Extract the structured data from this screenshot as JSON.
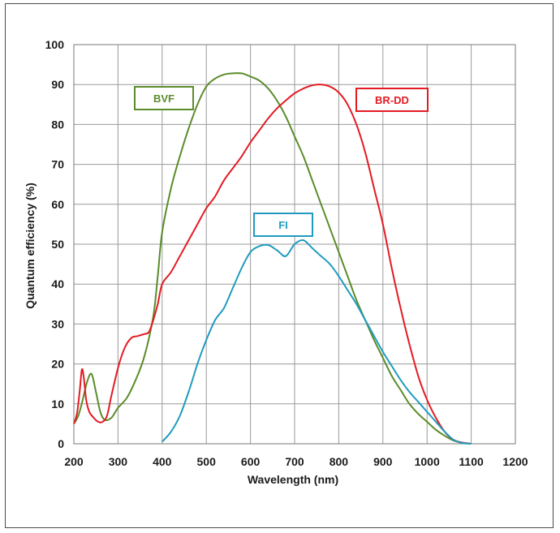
{
  "chart_data": {
    "type": "line",
    "xlabel": "Wavelength (nm)",
    "ylabel": "Quantum efficiency (%)",
    "xlim": [
      200,
      1200
    ],
    "ylim": [
      0,
      100
    ],
    "x_ticks": [
      200,
      300,
      400,
      500,
      600,
      700,
      800,
      900,
      1000,
      1100,
      1200
    ],
    "y_ticks": [
      0,
      10,
      20,
      30,
      40,
      50,
      60,
      70,
      80,
      90,
      100
    ],
    "grid": true,
    "series": [
      {
        "name": "BVF",
        "color": "#5b8c2a",
        "points": [
          [
            200,
            5
          ],
          [
            210,
            7
          ],
          [
            220,
            11
          ],
          [
            230,
            15.5
          ],
          [
            240,
            17.5
          ],
          [
            250,
            13
          ],
          [
            260,
            8
          ],
          [
            270,
            6
          ],
          [
            285,
            6.5
          ],
          [
            300,
            9
          ],
          [
            320,
            11.5
          ],
          [
            340,
            16
          ],
          [
            360,
            22
          ],
          [
            380,
            32
          ],
          [
            390,
            42
          ],
          [
            400,
            53
          ],
          [
            420,
            64
          ],
          [
            440,
            72
          ],
          [
            460,
            79
          ],
          [
            480,
            85
          ],
          [
            500,
            89.5
          ],
          [
            520,
            91.5
          ],
          [
            540,
            92.5
          ],
          [
            560,
            92.8
          ],
          [
            580,
            92.8
          ],
          [
            600,
            92
          ],
          [
            620,
            91
          ],
          [
            640,
            89
          ],
          [
            660,
            86
          ],
          [
            680,
            82
          ],
          [
            700,
            77
          ],
          [
            720,
            72
          ],
          [
            740,
            66
          ],
          [
            760,
            60
          ],
          [
            780,
            54
          ],
          [
            800,
            48
          ],
          [
            820,
            42
          ],
          [
            840,
            36
          ],
          [
            860,
            31
          ],
          [
            880,
            26
          ],
          [
            900,
            21.5
          ],
          [
            920,
            17
          ],
          [
            940,
            13.5
          ],
          [
            960,
            10
          ],
          [
            980,
            7.5
          ],
          [
            1000,
            5.5
          ],
          [
            1020,
            3.5
          ],
          [
            1040,
            2
          ],
          [
            1060,
            0.8
          ],
          [
            1080,
            0.2
          ],
          [
            1100,
            0
          ]
        ]
      },
      {
        "name": "BR-DD",
        "color": "#e31b23",
        "points": [
          [
            200,
            5
          ],
          [
            207,
            7.5
          ],
          [
            213,
            13
          ],
          [
            218,
            18.5
          ],
          [
            222,
            17
          ],
          [
            228,
            11
          ],
          [
            235,
            8
          ],
          [
            245,
            6.5
          ],
          [
            255,
            5.5
          ],
          [
            265,
            5.5
          ],
          [
            275,
            7
          ],
          [
            285,
            12
          ],
          [
            300,
            19
          ],
          [
            315,
            24
          ],
          [
            330,
            26.5
          ],
          [
            345,
            27
          ],
          [
            360,
            27.5
          ],
          [
            370,
            28
          ],
          [
            380,
            31
          ],
          [
            390,
            35
          ],
          [
            400,
            40
          ],
          [
            420,
            43
          ],
          [
            440,
            47
          ],
          [
            460,
            51
          ],
          [
            480,
            55
          ],
          [
            500,
            59
          ],
          [
            520,
            62
          ],
          [
            540,
            66
          ],
          [
            560,
            69
          ],
          [
            580,
            72
          ],
          [
            600,
            75.5
          ],
          [
            620,
            78.5
          ],
          [
            640,
            81.5
          ],
          [
            660,
            84
          ],
          [
            680,
            86
          ],
          [
            700,
            87.8
          ],
          [
            720,
            89
          ],
          [
            740,
            89.8
          ],
          [
            760,
            90
          ],
          [
            780,
            89.5
          ],
          [
            800,
            88
          ],
          [
            820,
            85
          ],
          [
            840,
            80
          ],
          [
            860,
            73
          ],
          [
            880,
            64
          ],
          [
            900,
            55
          ],
          [
            920,
            44
          ],
          [
            940,
            34
          ],
          [
            960,
            25
          ],
          [
            980,
            17
          ],
          [
            1000,
            11
          ],
          [
            1020,
            6.5
          ],
          [
            1040,
            3
          ],
          [
            1060,
            1
          ],
          [
            1080,
            0.3
          ],
          [
            1100,
            0
          ]
        ]
      },
      {
        "name": "FI",
        "color": "#1f9bbf",
        "points": [
          [
            400,
            0.5
          ],
          [
            420,
            3
          ],
          [
            440,
            7
          ],
          [
            460,
            13
          ],
          [
            480,
            20
          ],
          [
            500,
            26
          ],
          [
            520,
            31
          ],
          [
            540,
            34
          ],
          [
            560,
            39
          ],
          [
            580,
            44
          ],
          [
            600,
            48
          ],
          [
            620,
            49.5
          ],
          [
            640,
            49.8
          ],
          [
            660,
            48.5
          ],
          [
            680,
            47
          ],
          [
            700,
            50
          ],
          [
            720,
            51
          ],
          [
            740,
            49
          ],
          [
            760,
            47
          ],
          [
            780,
            45
          ],
          [
            800,
            42
          ],
          [
            820,
            38.5
          ],
          [
            840,
            35
          ],
          [
            860,
            31
          ],
          [
            880,
            27
          ],
          [
            900,
            23
          ],
          [
            920,
            19.5
          ],
          [
            940,
            16
          ],
          [
            960,
            13
          ],
          [
            980,
            10.5
          ],
          [
            1000,
            8
          ],
          [
            1020,
            5.5
          ],
          [
            1040,
            3
          ],
          [
            1060,
            1
          ],
          [
            1080,
            0.2
          ],
          [
            1100,
            0
          ]
        ]
      }
    ],
    "legend": [
      {
        "label": "BVF",
        "color": "#5b8c2a"
      },
      {
        "label": "BR-DD",
        "color": "#e31b23"
      },
      {
        "label": "FI",
        "color": "#1f9bbf"
      }
    ]
  }
}
